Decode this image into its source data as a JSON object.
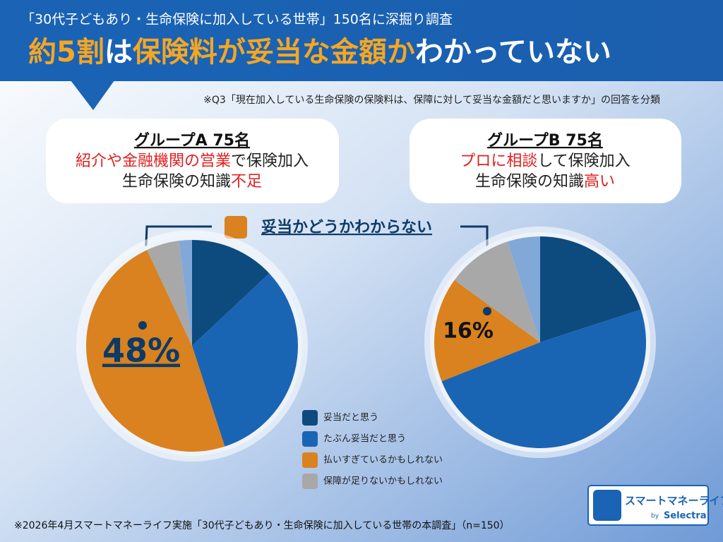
{
  "header": {
    "subtitle": "「30代子どもあり・生命保険に加入している世帯」150名に深掘り調査",
    "title": [
      {
        "text": "約5割",
        "color": "#f5a623"
      },
      {
        "text": "は",
        "color": "#ffffff"
      },
      {
        "text": "保険料が妥当な金額か",
        "color": "#f5a623"
      },
      {
        "text": "わかっていない",
        "color": "#ffffff"
      }
    ]
  },
  "note": "※Q3「現在加入している生命保険の保険料は、保障に対して妥当な金額だと思いますか」の回答を分類",
  "callout": {
    "label": "妥当かどうかわからない",
    "color": "#d9821f"
  },
  "chart_data": [
    {
      "type": "pie",
      "title": "グループA 75名",
      "description": [
        [
          {
            "text": "紹介や金融機関の営業",
            "color": "#e02020"
          },
          {
            "text": "で保険加入",
            "color": "#222222"
          }
        ],
        [
          {
            "text": "生命保険の知識",
            "color": "#222222"
          },
          {
            "text": "不足",
            "color": "#e02020"
          }
        ]
      ],
      "values": [
        13,
        32,
        48,
        5,
        2
      ],
      "value_labels": [
        null,
        null,
        "48%",
        null,
        null
      ]
    },
    {
      "type": "pie",
      "title": "グループB 75名",
      "description": [
        [
          {
            "text": "プロに相談",
            "color": "#e02020"
          },
          {
            "text": "して保険加入",
            "color": "#222222"
          }
        ],
        [
          {
            "text": "生命保険の知識",
            "color": "#222222"
          },
          {
            "text": "高い",
            "color": "#e02020"
          }
        ]
      ],
      "values": [
        20,
        49,
        16,
        10,
        5
      ],
      "value_labels": [
        null,
        null,
        "16%",
        null,
        null
      ]
    }
  ],
  "legend": {
    "categories": [
      "妥当だと思う",
      "たぶん妥当だと思う",
      "払いすぎているかもしれない",
      "保障が足りないかもしれない"
    ],
    "colors": [
      "#0d4a7e",
      "#1a64b4",
      "#d9821f",
      "#a8a8a8",
      "#82a8d8"
    ]
  },
  "footer": "※2026年4月スマートマネーライフ実施「30代子どもあり・生命保険に加入している世帯の本調査」（n=150）",
  "logo": {
    "name": "スマートマネーライフ",
    "by": "by",
    "brand": "Selectra"
  }
}
